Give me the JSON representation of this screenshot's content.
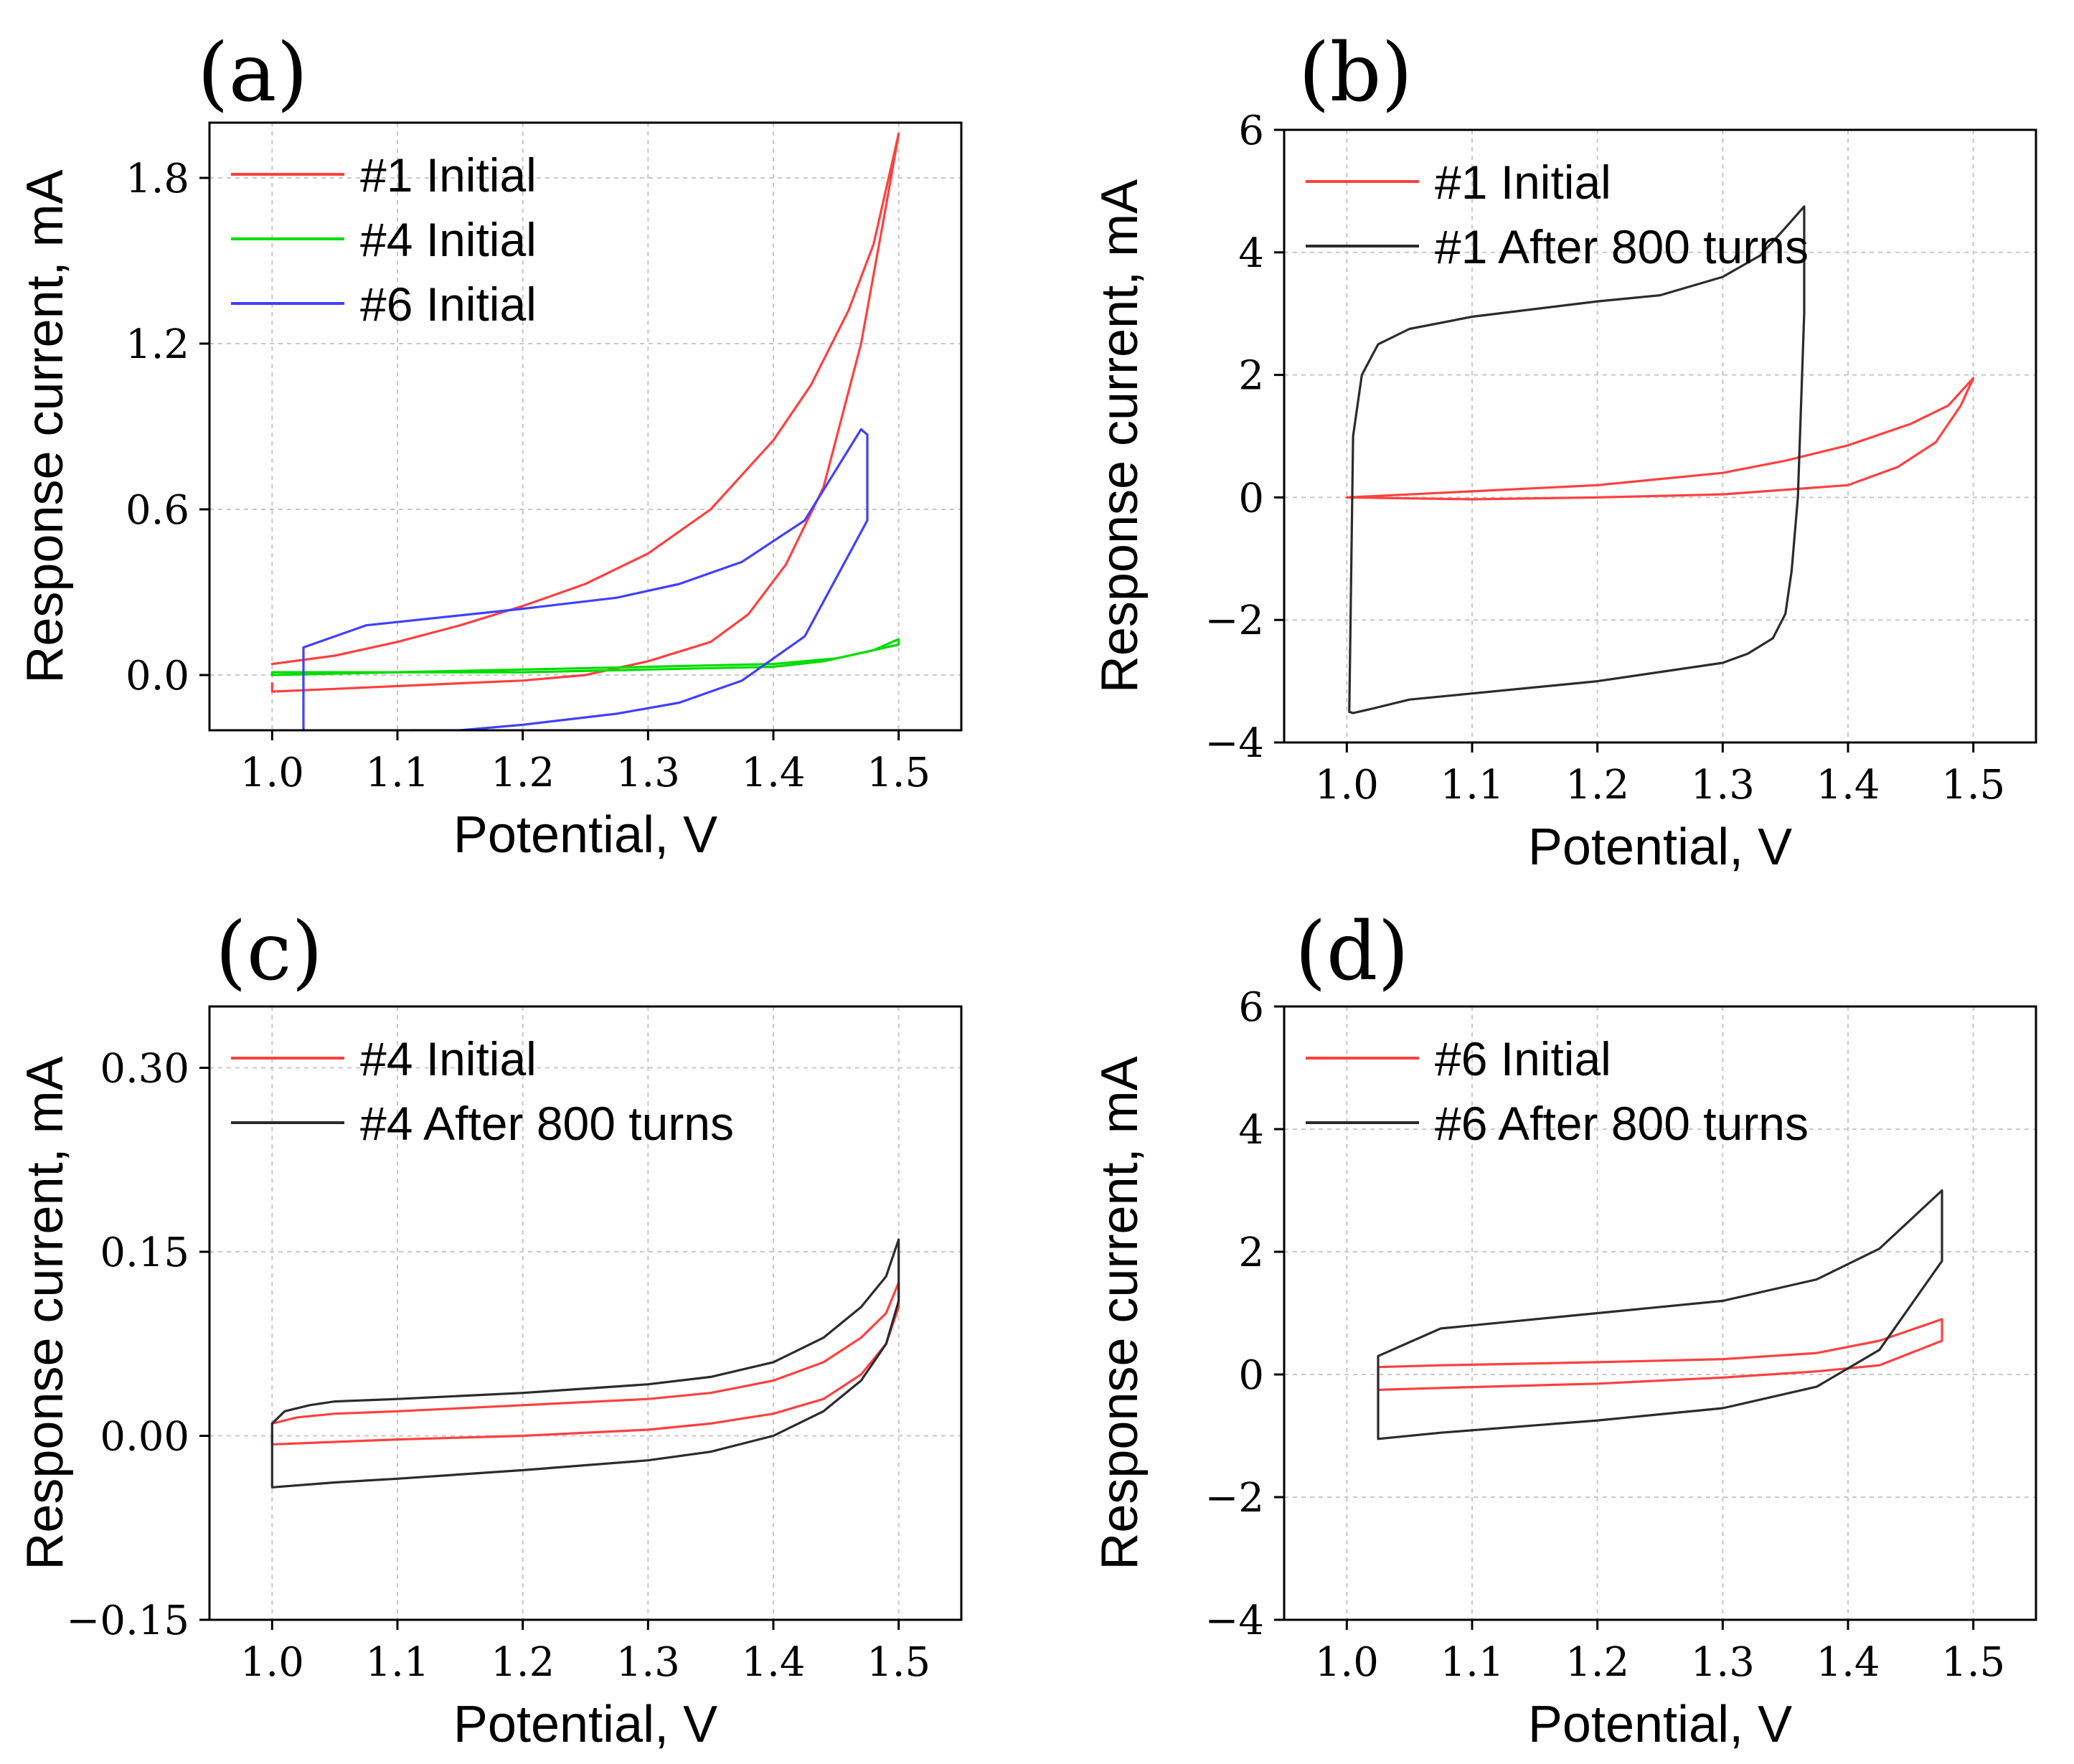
{
  "chart_data": [
    {
      "panel": "(a)",
      "type": "line",
      "xlabel": "Potential, V",
      "ylabel": "Response current, mA",
      "xlim": [
        0.95,
        1.55
      ],
      "ylim": [
        -0.2,
        2.0
      ],
      "xticks": [
        "1.0",
        "1.1",
        "1.2",
        "1.3",
        "1.4",
        "1.5"
      ],
      "xtick_values": [
        1.0,
        1.1,
        1.2,
        1.3,
        1.4,
        1.5
      ],
      "yticks": [
        "0.0",
        "0.6",
        "1.2",
        "1.8"
      ],
      "ytick_values": [
        0.0,
        0.6,
        1.2,
        1.8
      ],
      "grid": true,
      "legend_position": "top-left",
      "series": [
        {
          "name": "#1 Initial",
          "color": "#ff4040",
          "x": [
            1.0,
            1.05,
            1.1,
            1.15,
            1.2,
            1.25,
            1.3,
            1.35,
            1.4,
            1.43,
            1.46,
            1.48,
            1.5,
            1.49,
            1.47,
            1.44,
            1.41,
            1.38,
            1.35,
            1.3,
            1.25,
            1.2,
            1.15,
            1.1,
            1.05,
            1.0,
            1.0
          ],
          "y": [
            0.04,
            0.07,
            0.12,
            0.18,
            0.25,
            0.33,
            0.44,
            0.6,
            0.85,
            1.05,
            1.32,
            1.56,
            1.96,
            1.7,
            1.2,
            0.68,
            0.4,
            0.22,
            0.12,
            0.05,
            0.0,
            -0.02,
            -0.03,
            -0.04,
            -0.05,
            -0.06,
            -0.03
          ]
        },
        {
          "name": "#4 Initial",
          "color": "#00dd00",
          "x": [
            1.0,
            1.1,
            1.2,
            1.3,
            1.4,
            1.45,
            1.48,
            1.5,
            1.5,
            1.47,
            1.44,
            1.4,
            1.3,
            1.2,
            1.1,
            1.0,
            1.0
          ],
          "y": [
            0.0,
            0.01,
            0.02,
            0.03,
            0.04,
            0.06,
            0.09,
            0.13,
            0.11,
            0.08,
            0.05,
            0.03,
            0.02,
            0.01,
            0.01,
            0.01,
            0.0
          ]
        },
        {
          "name": "#6 Initial",
          "color": "#4040ff",
          "x": [
            1.025,
            1.025,
            1.075,
            1.2,
            1.275,
            1.325,
            1.375,
            1.425,
            1.47,
            1.475,
            1.475,
            1.425,
            1.375,
            1.325,
            1.275,
            1.2,
            1.15,
            1.11
          ],
          "y": [
            -0.2,
            0.1,
            0.18,
            0.24,
            0.28,
            0.33,
            0.41,
            0.56,
            0.89,
            0.87,
            0.56,
            0.14,
            -0.02,
            -0.1,
            -0.14,
            -0.18,
            -0.2,
            -0.2
          ]
        }
      ]
    },
    {
      "panel": "(b)",
      "type": "line",
      "xlabel": "Potential, V",
      "ylabel": "Response current, mA",
      "xlim": [
        0.95,
        1.55
      ],
      "ylim": [
        -4,
        6
      ],
      "xticks": [
        "1.0",
        "1.1",
        "1.2",
        "1.3",
        "1.4",
        "1.5"
      ],
      "xtick_values": [
        1.0,
        1.1,
        1.2,
        1.3,
        1.4,
        1.5
      ],
      "yticks": [
        "−4",
        "−2",
        "0",
        "2",
        "4",
        "6"
      ],
      "ytick_values": [
        -4,
        -2,
        0,
        2,
        4,
        6
      ],
      "grid": true,
      "legend_position": "top-left",
      "series": [
        {
          "name": "#1 Initial",
          "color": "#ff4040",
          "x": [
            1.0,
            1.1,
            1.2,
            1.3,
            1.35,
            1.4,
            1.45,
            1.48,
            1.5,
            1.49,
            1.47,
            1.44,
            1.4,
            1.3,
            1.2,
            1.1,
            1.0
          ],
          "y": [
            0.0,
            0.1,
            0.2,
            0.4,
            0.6,
            0.85,
            1.2,
            1.5,
            1.95,
            1.5,
            0.9,
            0.5,
            0.2,
            0.05,
            0.0,
            -0.03,
            0.0
          ]
        },
        {
          "name": "#1 After 800 turns",
          "color": "#2b2b2b",
          "x": [
            1.002,
            1.005,
            1.012,
            1.025,
            1.05,
            1.1,
            1.2,
            1.25,
            1.3,
            1.33,
            1.35,
            1.365,
            1.365,
            1.36,
            1.355,
            1.35,
            1.34,
            1.32,
            1.3,
            1.2,
            1.1,
            1.05,
            1.02,
            1.005,
            1.002
          ],
          "y": [
            -3.5,
            1.0,
            2.0,
            2.5,
            2.75,
            2.95,
            3.2,
            3.3,
            3.6,
            3.95,
            4.4,
            4.75,
            3.0,
            0.0,
            -1.2,
            -1.9,
            -2.3,
            -2.55,
            -2.7,
            -3.0,
            -3.2,
            -3.3,
            -3.45,
            -3.52,
            -3.5
          ]
        }
      ]
    },
    {
      "panel": "(c)",
      "type": "line",
      "xlabel": "Potential, V",
      "ylabel": "Response current, mA",
      "xlim": [
        0.95,
        1.55
      ],
      "ylim": [
        -0.15,
        0.35
      ],
      "xticks": [
        "1.0",
        "1.1",
        "1.2",
        "1.3",
        "1.4",
        "1.5"
      ],
      "xtick_values": [
        1.0,
        1.1,
        1.2,
        1.3,
        1.4,
        1.5
      ],
      "yticks": [
        "−0.15",
        "0.00",
        "0.15",
        "0.30"
      ],
      "ytick_values": [
        -0.15,
        0.0,
        0.15,
        0.3
      ],
      "grid": true,
      "legend_position": "top-left",
      "series": [
        {
          "name": "#4 Initial",
          "color": "#ff4040",
          "x": [
            1.0,
            1.02,
            1.05,
            1.1,
            1.2,
            1.3,
            1.35,
            1.4,
            1.44,
            1.47,
            1.49,
            1.5,
            1.5,
            1.49,
            1.47,
            1.44,
            1.4,
            1.35,
            1.3,
            1.2,
            1.1,
            1.05,
            1.0,
            1.0
          ],
          "y": [
            0.01,
            0.015,
            0.018,
            0.02,
            0.025,
            0.03,
            0.035,
            0.045,
            0.06,
            0.08,
            0.1,
            0.125,
            0.105,
            0.075,
            0.05,
            0.03,
            0.018,
            0.01,
            0.005,
            0.0,
            -0.003,
            -0.005,
            -0.007,
            0.0
          ]
        },
        {
          "name": "#4 After 800 turns",
          "color": "#2b2b2b",
          "x": [
            1.0,
            1.01,
            1.03,
            1.05,
            1.1,
            1.2,
            1.3,
            1.35,
            1.4,
            1.44,
            1.47,
            1.49,
            1.5,
            1.5,
            1.49,
            1.47,
            1.44,
            1.4,
            1.35,
            1.3,
            1.2,
            1.1,
            1.05,
            1.0,
            1.0
          ],
          "y": [
            0.01,
            0.02,
            0.025,
            0.028,
            0.03,
            0.035,
            0.042,
            0.048,
            0.06,
            0.08,
            0.105,
            0.13,
            0.16,
            0.11,
            0.075,
            0.045,
            0.02,
            0.0,
            -0.013,
            -0.02,
            -0.028,
            -0.035,
            -0.038,
            -0.042,
            0.01
          ]
        }
      ]
    },
    {
      "panel": "(d)",
      "type": "line",
      "xlabel": "Potential, V",
      "ylabel": "Response current, mA",
      "xlim": [
        0.95,
        1.55
      ],
      "ylim": [
        -4,
        6
      ],
      "xticks": [
        "1.0",
        "1.1",
        "1.2",
        "1.3",
        "1.4",
        "1.5"
      ],
      "xtick_values": [
        1.0,
        1.1,
        1.2,
        1.3,
        1.4,
        1.5
      ],
      "yticks": [
        "−4",
        "−2",
        "0",
        "2",
        "4",
        "6"
      ],
      "ytick_values": [
        -4,
        -2,
        0,
        2,
        4,
        6
      ],
      "grid": true,
      "legend_position": "top-left",
      "series": [
        {
          "name": "#6 Initial",
          "color": "#ff4040",
          "x": [
            1.025,
            1.025,
            1.075,
            1.2,
            1.3,
            1.375,
            1.425,
            1.475,
            1.475,
            1.425,
            1.375,
            1.3,
            1.2,
            1.075,
            1.025
          ],
          "y": [
            -0.25,
            0.12,
            0.15,
            0.2,
            0.25,
            0.35,
            0.55,
            0.9,
            0.55,
            0.15,
            0.05,
            -0.05,
            -0.15,
            -0.22,
            -0.25
          ]
        },
        {
          "name": "#6 After 800 turns",
          "color": "#2b2b2b",
          "x": [
            1.025,
            1.025,
            1.075,
            1.2,
            1.3,
            1.375,
            1.425,
            1.475,
            1.475,
            1.425,
            1.375,
            1.3,
            1.2,
            1.075,
            1.025
          ],
          "y": [
            -1.05,
            0.3,
            0.75,
            1.0,
            1.2,
            1.55,
            2.05,
            3.0,
            1.85,
            0.4,
            -0.2,
            -0.55,
            -0.75,
            -0.95,
            -1.05
          ]
        }
      ]
    }
  ]
}
